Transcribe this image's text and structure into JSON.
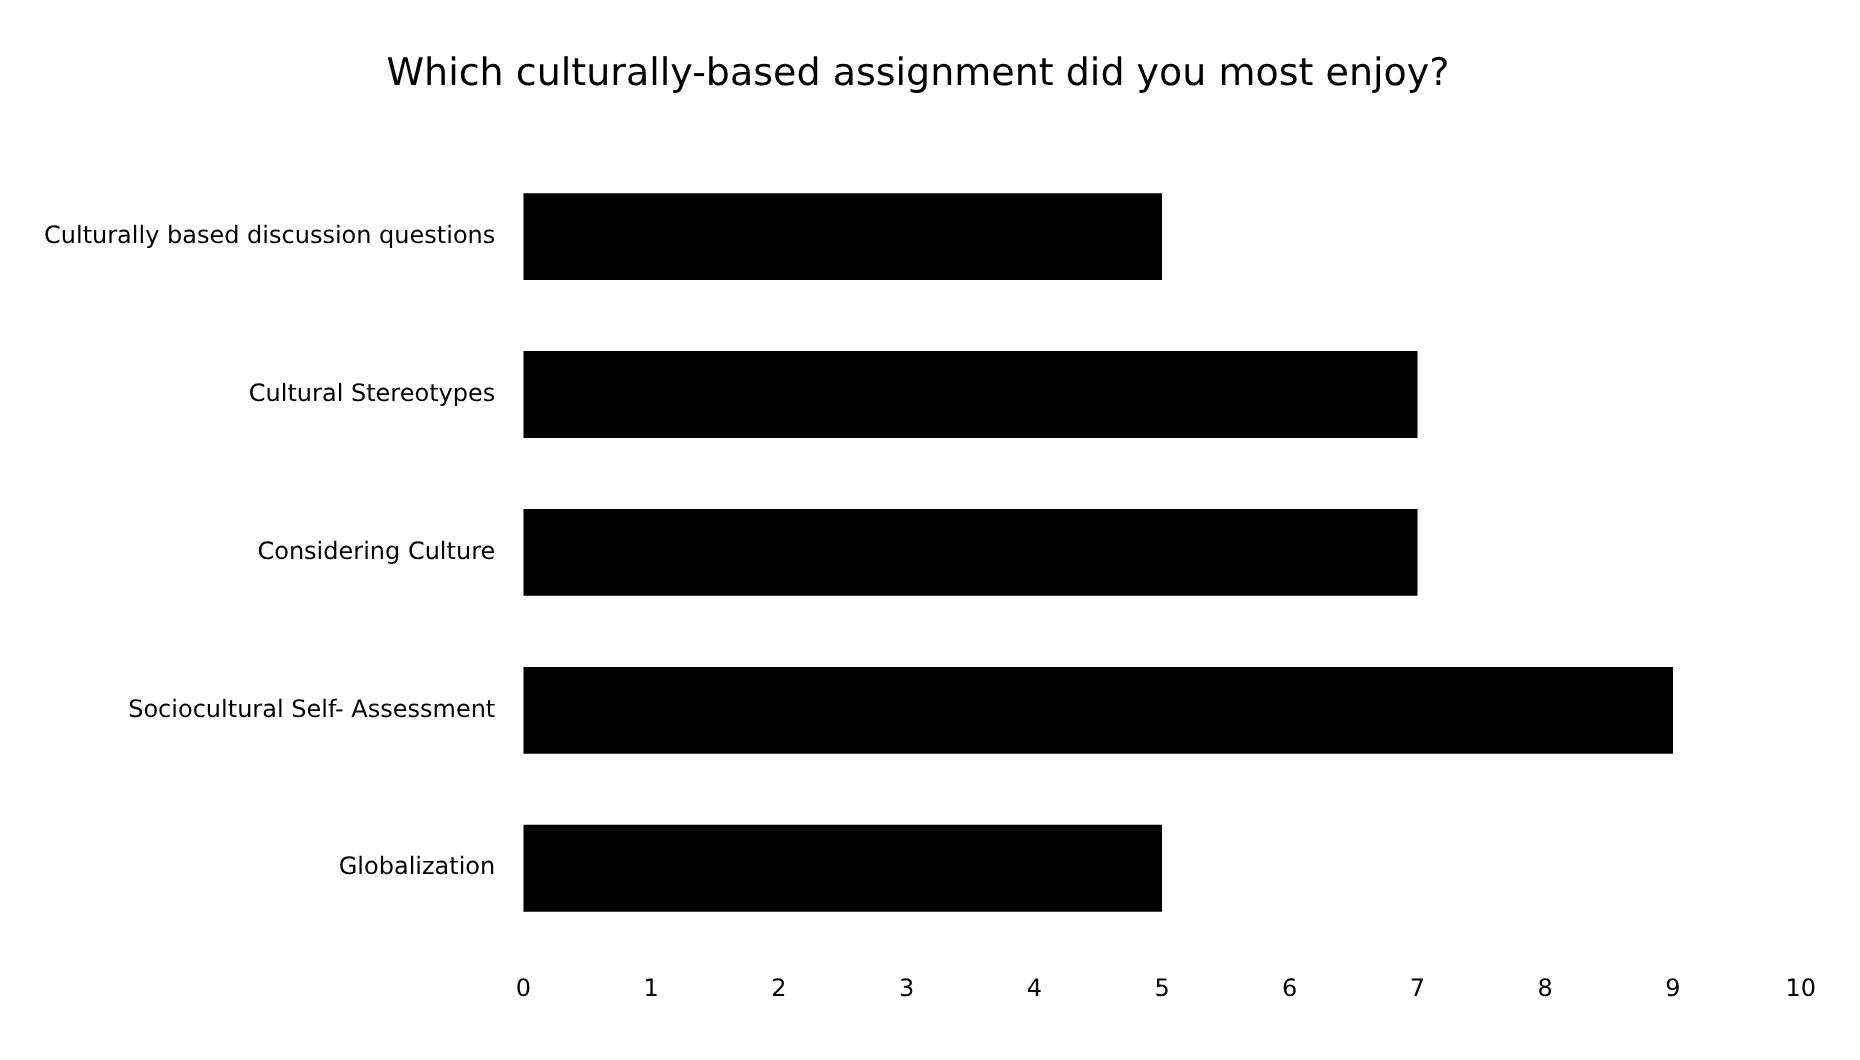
{
  "chart_data": {
    "type": "bar",
    "orientation": "horizontal",
    "title": "Which culturally-based assignment did you most enjoy?",
    "categories": [
      "Culturally based discussion questions",
      "Cultural Stereotypes",
      "Considering Culture",
      "Sociocultural Self- Assessment",
      "Globalization"
    ],
    "values": [
      5,
      7,
      7,
      9,
      5
    ],
    "color": "#000000",
    "xlim": [
      0,
      10
    ],
    "xticks": [
      0,
      1,
      2,
      3,
      4,
      5,
      6,
      7,
      8,
      9,
      10
    ],
    "grid": false,
    "legend": false
  }
}
